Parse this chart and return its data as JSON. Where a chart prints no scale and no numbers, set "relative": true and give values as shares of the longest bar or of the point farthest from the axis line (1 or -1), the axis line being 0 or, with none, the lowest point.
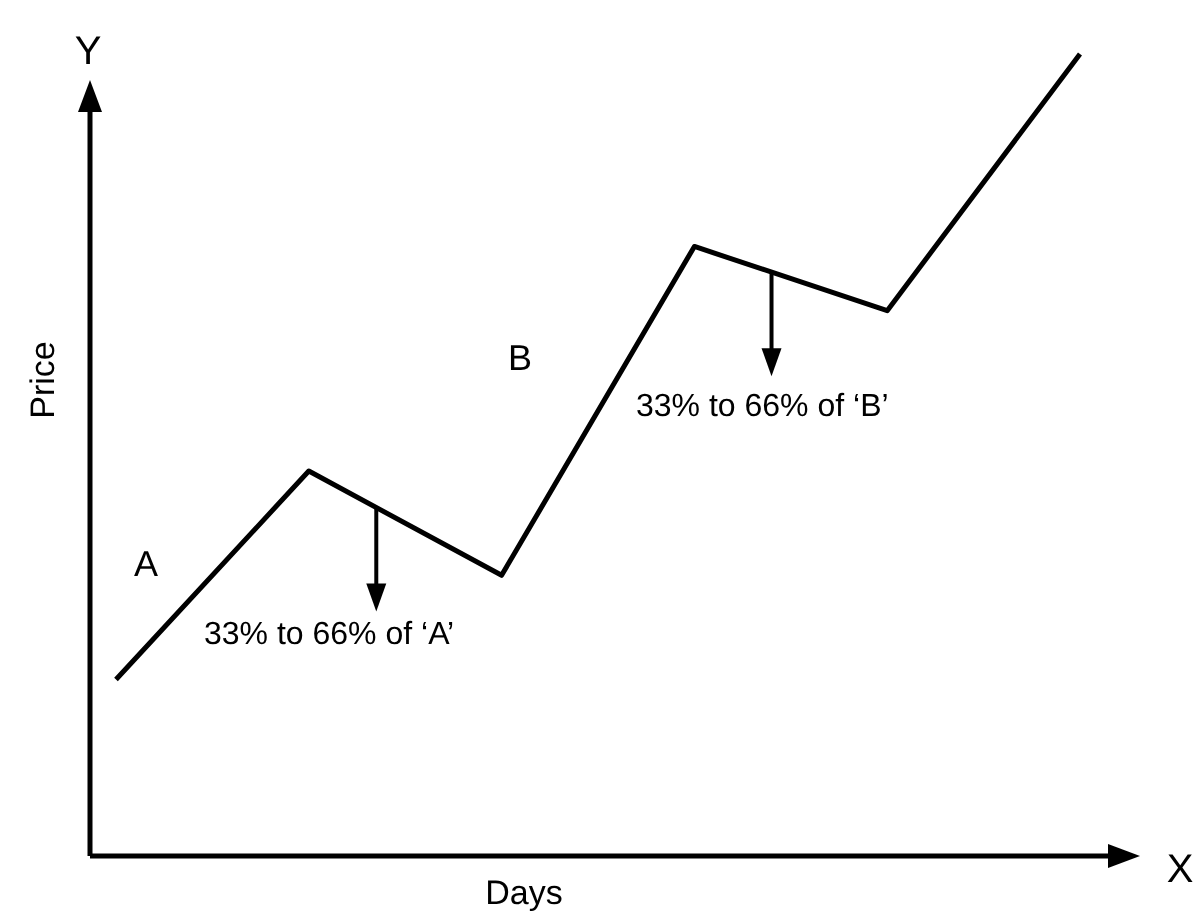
{
  "chart_data": {
    "type": "line",
    "relative": true,
    "xlabel": "Days",
    "ylabel": "Price",
    "categories": [
      null,
      null,
      null,
      null,
      null,
      null
    ],
    "series": [
      {
        "color": "#000000",
        "values": [
          0.22,
          0.48,
          0.35,
          0.76,
          0.68,
          1
        ]
      }
    ],
    "annotations": [
      "A",
      "33% to 66% of ‘A’",
      "B",
      "33% to 66% of ‘B’",
      "Y",
      "X"
    ],
    "marker": "none",
    "line_style": "solid"
  }
}
